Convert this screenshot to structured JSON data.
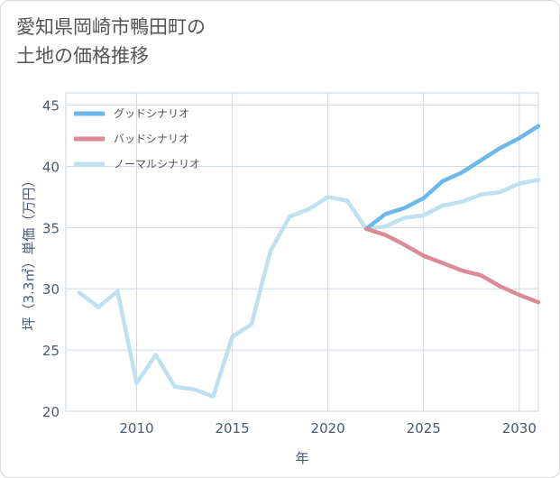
{
  "title": {
    "line1": "愛知県岡崎市鴨田町の",
    "line2": "土地の価格推移"
  },
  "chart_data": {
    "type": "line",
    "xlabel": "年",
    "ylabel": "坪（3.3㎡）単価（万円）",
    "xlim": [
      2006.3,
      2031
    ],
    "ylim": [
      20,
      46
    ],
    "x_ticks": [
      2010,
      2015,
      2020,
      2025,
      2030
    ],
    "y_ticks": [
      20,
      25,
      30,
      35,
      40,
      45
    ],
    "grid": true,
    "legend_position": "top-left",
    "series": [
      {
        "name": "グッドシナリオ",
        "color": "#6cb8ec",
        "x": [
          2022,
          2023,
          2024,
          2025,
          2026,
          2027,
          2028,
          2029,
          2030,
          2031
        ],
        "y": [
          34.9,
          36.1,
          36.6,
          37.4,
          38.8,
          39.5,
          40.5,
          41.5,
          42.3,
          43.3
        ]
      },
      {
        "name": "バッドシナリオ",
        "color": "#de8a95",
        "x": [
          2022,
          2023,
          2024,
          2025,
          2026,
          2027,
          2028,
          2029,
          2030,
          2031
        ],
        "y": [
          34.9,
          34.4,
          33.6,
          32.7,
          32.1,
          31.5,
          31.1,
          30.2,
          29.5,
          28.9
        ]
      },
      {
        "name": "ノーマルシナリオ",
        "color": "#bfe0ee",
        "x": [
          2007,
          2008,
          2009,
          2010,
          2011,
          2012,
          2013,
          2014,
          2015,
          2016,
          2017,
          2018,
          2019,
          2020,
          2021,
          2022,
          2023,
          2024,
          2025,
          2026,
          2027,
          2028,
          2029,
          2030,
          2031
        ],
        "y": [
          29.7,
          28.5,
          29.8,
          22.3,
          24.6,
          22.0,
          21.8,
          21.2,
          26.1,
          27.1,
          33.1,
          35.9,
          36.5,
          37.5,
          37.2,
          34.9,
          35.1,
          35.8,
          36.0,
          36.8,
          37.1,
          37.7,
          37.9,
          38.6,
          38.9
        ]
      }
    ]
  }
}
